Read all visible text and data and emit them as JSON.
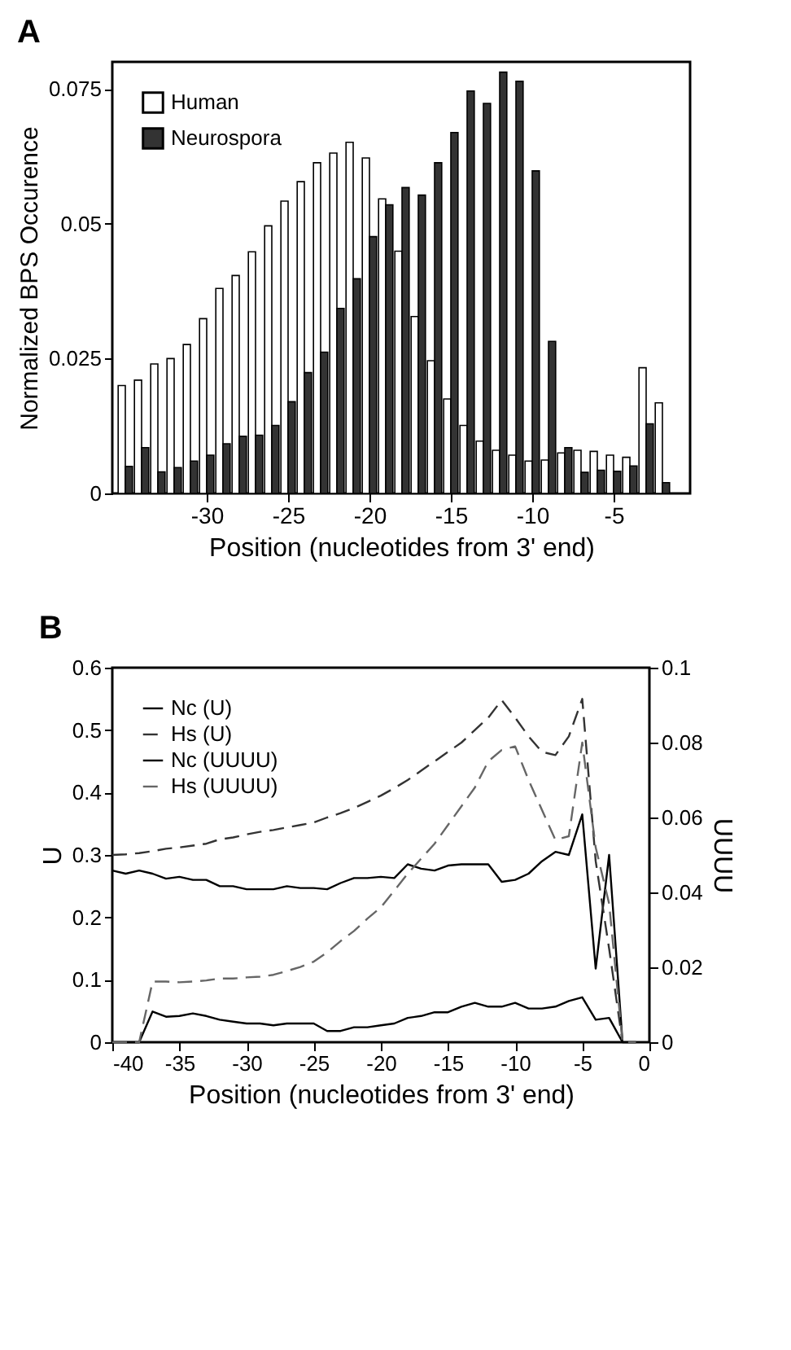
{
  "chart_data": [
    {
      "type": "bar",
      "title": "A",
      "xlabel": "Position (nucleotides from 3' end)",
      "ylabel": "Normalized BPS Occurence",
      "x": [
        -35,
        -34,
        -33,
        -32,
        -31,
        -30,
        -29,
        -28,
        -27,
        -26,
        -25,
        -24,
        -23,
        -22,
        -21,
        -20,
        -19,
        -18,
        -17,
        -16,
        -15,
        -14,
        -13,
        -12,
        -11,
        -10,
        -9,
        -8,
        -7,
        -6,
        -5,
        -4,
        -3,
        -2
      ],
      "series": [
        {
          "name": "Human",
          "color": "#ffffff",
          "values": [
            0.02,
            0.021,
            0.024,
            0.025,
            0.0276,
            0.0324,
            0.038,
            0.0404,
            0.0448,
            0.0496,
            0.0542,
            0.0578,
            0.0613,
            0.0631,
            0.0651,
            0.0622,
            0.0546,
            0.0449,
            0.0328,
            0.0246,
            0.0175,
            0.0126,
            0.0097,
            0.008,
            0.0071,
            0.006,
            0.0062,
            0.0075,
            0.008,
            0.0078,
            0.0071,
            0.0067,
            0.0233,
            0.0168
          ]
        },
        {
          "name": "Neurospora",
          "color": "#333333",
          "values": [
            0.005,
            0.0085,
            0.004,
            0.0048,
            0.006,
            0.0071,
            0.0092,
            0.0106,
            0.0108,
            0.0126,
            0.017,
            0.0224,
            0.0262,
            0.0343,
            0.0398,
            0.0476,
            0.0535,
            0.0567,
            0.0553,
            0.0613,
            0.0669,
            0.0746,
            0.0723,
            0.0781,
            0.0764,
            0.0598,
            0.0282,
            0.0085,
            0.0039,
            0.0043,
            0.0041,
            0.0051,
            0.0129,
            0.002
          ]
        }
      ],
      "xlim": [
        -35.8,
        -0.3
      ],
      "xticks": [
        -30,
        -25,
        -20,
        -15,
        -10,
        -5
      ],
      "ylim": [
        0,
        0.08
      ],
      "yticks": [
        0,
        0.025,
        0.05,
        0.075
      ],
      "legend": "top left"
    },
    {
      "type": "line",
      "title": "B",
      "xlabel": "Position (nucleotides from 3' end)",
      "ylabel": "U",
      "y2label": "UUUU",
      "x": [
        -40,
        -39,
        -38,
        -37,
        -36,
        -35,
        -34,
        -33,
        -32,
        -31,
        -30,
        -29,
        -28,
        -27,
        -26,
        -25,
        -24,
        -23,
        -22,
        -21,
        -20,
        -19,
        -18,
        -17,
        -16,
        -15,
        -14,
        -13,
        -12,
        -11,
        -10,
        -9,
        -8,
        -7,
        -6,
        -5,
        -4,
        -3,
        -2,
        -1
      ],
      "series": [
        {
          "name": "Nc (U)",
          "color": "#000000",
          "line_style": "solid",
          "values": [
            0.275,
            0.27,
            0.275,
            0.27,
            0.262,
            0.265,
            0.26,
            0.26,
            0.25,
            0.25,
            0.245,
            0.245,
            0.245,
            0.25,
            0.247,
            0.247,
            0.245,
            0.255,
            0.263,
            0.263,
            0.265,
            0.263,
            0.285,
            0.278,
            0.275,
            0.283,
            0.285,
            0.285,
            0.285,
            0.257,
            0.26,
            0.27,
            0.29,
            0.305,
            0.3,
            0.365,
            0.118,
            0.3,
            0,
            null
          ]
        },
        {
          "name": "Hs (U)",
          "color": "#333333",
          "line_style": "dashed",
          "values": [
            0.3,
            0.301,
            0.303,
            0.306,
            0.31,
            0.312,
            0.315,
            0.318,
            0.325,
            0.328,
            0.333,
            0.337,
            0.34,
            0.344,
            0.348,
            0.352,
            0.36,
            0.367,
            0.375,
            0.385,
            0.395,
            0.407,
            0.42,
            0.435,
            0.45,
            0.465,
            0.48,
            0.5,
            0.52,
            0.548,
            0.52,
            0.49,
            0.465,
            0.46,
            0.49,
            0.55,
            0.29,
            0.15,
            0,
            null
          ]
        },
        {
          "name": "Nc (UUUU)",
          "color": "#000000",
          "line_style": "solid",
          "axis": "y2",
          "values": [
            0,
            0,
            0,
            0.0082,
            0.0068,
            0.007,
            0.0077,
            0.007,
            0.006,
            0.0055,
            0.005,
            0.005,
            0.0045,
            0.005,
            0.005,
            0.005,
            0.003,
            0.003,
            0.004,
            0.004,
            0.0045,
            0.005,
            0.0065,
            0.007,
            0.008,
            0.008,
            0.0095,
            0.0105,
            0.0095,
            0.0095,
            0.0105,
            0.009,
            0.009,
            0.0095,
            0.011,
            0.012,
            0.006,
            0.0065,
            0,
            0
          ]
        },
        {
          "name": "Hs (UUUU)",
          "color": "#666666",
          "line_style": "dashed",
          "axis": "y2",
          "values": [
            0,
            0,
            0,
            0.0162,
            0.0162,
            0.016,
            0.0162,
            0.0165,
            0.017,
            0.017,
            0.0173,
            0.0175,
            0.018,
            0.019,
            0.0201,
            0.0215,
            0.024,
            0.027,
            0.0297,
            0.033,
            0.036,
            0.0405,
            0.045,
            0.049,
            0.053,
            0.058,
            0.063,
            0.068,
            0.075,
            0.078,
            0.079,
            0.07,
            0.062,
            0.054,
            0.055,
            0.08,
            0.052,
            0.037,
            0,
            0
          ]
        }
      ],
      "xlim": [
        -40,
        0
      ],
      "xticks": [
        -40,
        -35,
        -30,
        -25,
        -20,
        -15,
        -10,
        -5,
        0
      ],
      "ylim": [
        0,
        0.6
      ],
      "yticks": [
        0,
        0.1,
        0.2,
        0.3,
        0.4,
        0.5,
        0.6
      ],
      "y2lim": [
        0,
        0.1
      ],
      "y2ticks": [
        0,
        0.02,
        0.04,
        0.06,
        0.08,
        0.1
      ],
      "marker": "none",
      "legend": "top left"
    }
  ]
}
